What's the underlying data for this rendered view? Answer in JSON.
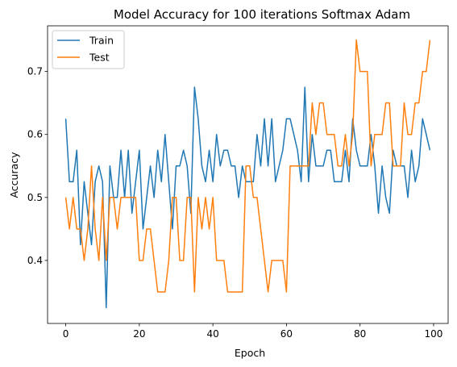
{
  "chart_data": {
    "type": "line",
    "title": "Model Accuracy for 100 iterations Softmax Adam",
    "xlabel": "Epoch",
    "ylabel": "Accuracy",
    "xlim": [
      -4.95,
      103.95
    ],
    "ylim": [
      0.3,
      0.7725
    ],
    "xticks": [
      0,
      20,
      40,
      60,
      80,
      100
    ],
    "yticks": [
      0.4,
      0.5,
      0.6,
      0.7
    ],
    "ytick_labels": [
      "0.4",
      "0.5",
      "0.6",
      "0.7"
    ],
    "legend": "upper left",
    "grid": false,
    "series": [
      {
        "name": "Train",
        "color": "#1f77b4",
        "x": [
          0,
          1,
          2,
          3,
          4,
          5,
          6,
          7,
          8,
          9,
          10,
          11,
          12,
          13,
          14,
          15,
          16,
          17,
          18,
          19,
          20,
          21,
          22,
          23,
          24,
          25,
          26,
          27,
          28,
          29,
          30,
          31,
          32,
          33,
          34,
          35,
          36,
          37,
          38,
          39,
          40,
          41,
          42,
          43,
          44,
          45,
          46,
          47,
          48,
          49,
          50,
          51,
          52,
          53,
          54,
          55,
          56,
          57,
          58,
          59,
          60,
          61,
          62,
          63,
          64,
          65,
          66,
          67,
          68,
          69,
          70,
          71,
          72,
          73,
          74,
          75,
          76,
          77,
          78,
          79,
          80,
          81,
          82,
          83,
          84,
          85,
          86,
          87,
          88,
          89,
          90,
          91,
          92,
          93,
          94,
          95,
          96,
          97,
          98,
          99
        ],
        "values": [
          0.625,
          0.525,
          0.525,
          0.575,
          0.425,
          0.525,
          0.475,
          0.425,
          0.525,
          0.55,
          0.525,
          0.325,
          0.55,
          0.5,
          0.5,
          0.575,
          0.5,
          0.575,
          0.475,
          0.525,
          0.575,
          0.45,
          0.5,
          0.55,
          0.5,
          0.575,
          0.525,
          0.6,
          0.525,
          0.45,
          0.55,
          0.55,
          0.575,
          0.55,
          0.475,
          0.675,
          0.625,
          0.55,
          0.525,
          0.575,
          0.525,
          0.6,
          0.55,
          0.575,
          0.575,
          0.55,
          0.55,
          0.5,
          0.55,
          0.525,
          0.525,
          0.525,
          0.6,
          0.55,
          0.625,
          0.55,
          0.625,
          0.525,
          0.55,
          0.575,
          0.625,
          0.625,
          0.6,
          0.575,
          0.525,
          0.675,
          0.525,
          0.6,
          0.55,
          0.55,
          0.55,
          0.575,
          0.575,
          0.525,
          0.525,
          0.525,
          0.575,
          0.525,
          0.625,
          0.575,
          0.55,
          0.55,
          0.55,
          0.6,
          0.55,
          0.475,
          0.55,
          0.5,
          0.475,
          0.575,
          0.55,
          0.55,
          0.55,
          0.5,
          0.575,
          0.525,
          0.55,
          0.625,
          0.6,
          0.575
        ]
      },
      {
        "name": "Test",
        "color": "#ff7f0e",
        "x": [
          0,
          1,
          2,
          3,
          4,
          5,
          6,
          7,
          8,
          9,
          10,
          11,
          12,
          13,
          14,
          15,
          16,
          17,
          18,
          19,
          20,
          21,
          22,
          23,
          24,
          25,
          26,
          27,
          28,
          29,
          30,
          31,
          32,
          33,
          34,
          35,
          36,
          37,
          38,
          39,
          40,
          41,
          42,
          43,
          44,
          45,
          46,
          47,
          48,
          49,
          50,
          51,
          52,
          53,
          54,
          55,
          56,
          57,
          58,
          59,
          60,
          61,
          62,
          63,
          64,
          65,
          66,
          67,
          68,
          69,
          70,
          71,
          72,
          73,
          74,
          75,
          76,
          77,
          78,
          79,
          80,
          81,
          82,
          83,
          84,
          85,
          86,
          87,
          88,
          89,
          90,
          91,
          92,
          93,
          94,
          95,
          96,
          97,
          98,
          99
        ],
        "values": [
          0.5,
          0.45,
          0.5,
          0.45,
          0.45,
          0.4,
          0.45,
          0.55,
          0.45,
          0.4,
          0.5,
          0.4,
          0.5,
          0.5,
          0.45,
          0.5,
          0.5,
          0.5,
          0.5,
          0.5,
          0.4,
          0.4,
          0.45,
          0.45,
          0.4,
          0.35,
          0.35,
          0.35,
          0.4,
          0.5,
          0.5,
          0.4,
          0.4,
          0.5,
          0.5,
          0.35,
          0.5,
          0.45,
          0.5,
          0.45,
          0.5,
          0.4,
          0.4,
          0.4,
          0.35,
          0.35,
          0.35,
          0.35,
          0.35,
          0.55,
          0.55,
          0.5,
          0.5,
          0.45,
          0.4,
          0.35,
          0.4,
          0.4,
          0.4,
          0.4,
          0.35,
          0.55,
          0.55,
          0.55,
          0.55,
          0.55,
          0.55,
          0.65,
          0.6,
          0.65,
          0.65,
          0.6,
          0.6,
          0.6,
          0.55,
          0.55,
          0.6,
          0.55,
          0.6,
          0.75,
          0.7,
          0.7,
          0.7,
          0.55,
          0.6,
          0.6,
          0.6,
          0.65,
          0.65,
          0.55,
          0.55,
          0.55,
          0.65,
          0.6,
          0.6,
          0.65,
          0.65,
          0.7,
          0.7,
          0.75
        ]
      }
    ]
  }
}
